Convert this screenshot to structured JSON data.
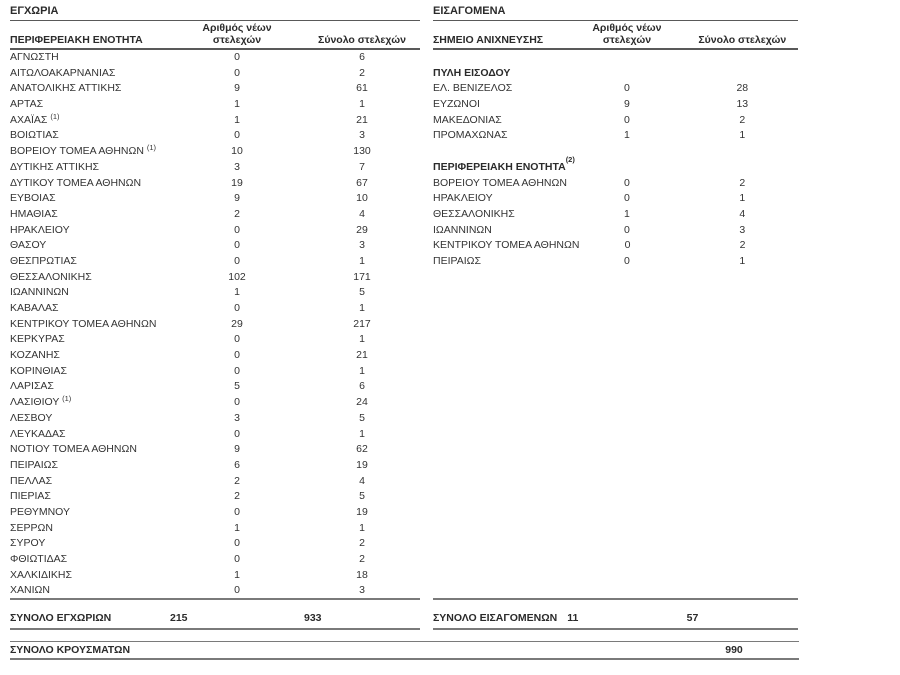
{
  "colors": {
    "text": "#333333",
    "bold_text": "#2b2b2b",
    "rule_thin": "#595959",
    "rule_thick": "#7a7a7a",
    "background": "#ffffff"
  },
  "domestic": {
    "title": "ΕΓΧΩΡΙΑ",
    "col1_header": "ΠΕΡΙΦΕΡΕΙΑΚΗ ΕΝΟΤΗΤΑ",
    "col2_header_line1": "Αριθμός νέων",
    "col2_header_line2": "στελεχών",
    "col3_header": "Σύνολο στελεχών",
    "rows": [
      {
        "name": "ΑΓΝΩΣΤΗ",
        "sup": "",
        "new": "0",
        "total": "6"
      },
      {
        "name": "ΑΙΤΩΛΟΑΚΑΡΝΑΝΙΑΣ",
        "sup": "",
        "new": "0",
        "total": "2"
      },
      {
        "name": "ΑΝΑΤΟΛΙΚΗΣ ΑΤΤΙΚΗΣ",
        "sup": "",
        "new": "9",
        "total": "61"
      },
      {
        "name": "ΑΡΤΑΣ",
        "sup": "",
        "new": "1",
        "total": "1"
      },
      {
        "name": "ΑΧΑΪΑΣ",
        "sup": "(1)",
        "new": "1",
        "total": "21"
      },
      {
        "name": "ΒΟΙΩΤΙΑΣ",
        "sup": "",
        "new": "0",
        "total": "3"
      },
      {
        "name": "ΒΟΡΕΙΟΥ ΤΟΜΕΑ ΑΘΗΝΩΝ",
        "sup": "(1)",
        "new": "10",
        "total": "130"
      },
      {
        "name": "ΔΥΤΙΚΗΣ ΑΤΤΙΚΗΣ",
        "sup": "",
        "new": "3",
        "total": "7"
      },
      {
        "name": "ΔΥΤΙΚΟΥ ΤΟΜΕΑ ΑΘΗΝΩΝ",
        "sup": "",
        "new": "19",
        "total": "67"
      },
      {
        "name": "ΕΥΒΟΙΑΣ",
        "sup": "",
        "new": "9",
        "total": "10"
      },
      {
        "name": "ΗΜΑΘΙΑΣ",
        "sup": "",
        "new": "2",
        "total": "4"
      },
      {
        "name": "ΗΡΑΚΛΕΙΟΥ",
        "sup": "",
        "new": "0",
        "total": "29"
      },
      {
        "name": "ΘΑΣΟΥ",
        "sup": "",
        "new": "0",
        "total": "3"
      },
      {
        "name": "ΘΕΣΠΡΩΤΙΑΣ",
        "sup": "",
        "new": "0",
        "total": "1"
      },
      {
        "name": "ΘΕΣΣΑΛΟΝΙΚΗΣ",
        "sup": "",
        "new": "102",
        "total": "171"
      },
      {
        "name": "ΙΩΑΝΝΙΝΩΝ",
        "sup": "",
        "new": "1",
        "total": "5"
      },
      {
        "name": "ΚΑΒΑΛΑΣ",
        "sup": "",
        "new": "0",
        "total": "1"
      },
      {
        "name": "ΚΕΝΤΡΙΚΟΥ ΤΟΜΕΑ ΑΘΗΝΩΝ",
        "sup": "",
        "new": "29",
        "total": "217"
      },
      {
        "name": "ΚΕΡΚΥΡΑΣ",
        "sup": "",
        "new": "0",
        "total": "1"
      },
      {
        "name": "ΚΟΖΑΝΗΣ",
        "sup": "",
        "new": "0",
        "total": "21"
      },
      {
        "name": "ΚΟΡΙΝΘΙΑΣ",
        "sup": "",
        "new": "0",
        "total": "1"
      },
      {
        "name": "ΛΑΡΙΣΑΣ",
        "sup": "",
        "new": "5",
        "total": "6"
      },
      {
        "name": "ΛΑΣΙΘΙΟΥ",
        "sup": "(1)",
        "new": "0",
        "total": "24"
      },
      {
        "name": "ΛΕΣΒΟΥ",
        "sup": "",
        "new": "3",
        "total": "5"
      },
      {
        "name": "ΛΕΥΚΑΔΑΣ",
        "sup": "",
        "new": "0",
        "total": "1"
      },
      {
        "name": "ΝΟΤΙΟΥ ΤΟΜΕΑ ΑΘΗΝΩΝ",
        "sup": "",
        "new": "9",
        "total": "62"
      },
      {
        "name": "ΠΕΙΡΑΙΩΣ",
        "sup": "",
        "new": "6",
        "total": "19"
      },
      {
        "name": "ΠΕΛΛΑΣ",
        "sup": "",
        "new": "2",
        "total": "4"
      },
      {
        "name": "ΠΙΕΡΙΑΣ",
        "sup": "",
        "new": "2",
        "total": "5"
      },
      {
        "name": "ΡΕΘΥΜΝΟΥ",
        "sup": "",
        "new": "0",
        "total": "19"
      },
      {
        "name": "ΣΕΡΡΩΝ",
        "sup": "",
        "new": "1",
        "total": "1"
      },
      {
        "name": "ΣΥΡΟΥ",
        "sup": "",
        "new": "0",
        "total": "2"
      },
      {
        "name": "ΦΘΙΩΤΙΔΑΣ",
        "sup": "",
        "new": "0",
        "total": "2"
      },
      {
        "name": "ΧΑΛΚΙΔΙΚΗΣ",
        "sup": "",
        "new": "1",
        "total": "18"
      },
      {
        "name": "ΧΑΝΙΩΝ",
        "sup": "",
        "new": "0",
        "total": "3"
      }
    ],
    "total_label": "ΣΥΝΟΛΟ ΕΓΧΩΡΙΩΝ",
    "total_new": "215",
    "total_sum": "933"
  },
  "imported": {
    "title": "ΕΙΣΑΓΟΜΕΝΑ",
    "col1_header": "ΣΗΜΕΙΟ ΑΝΙΧΝΕΥΣΗΣ",
    "col2_header_line1": "Αριθμός νέων",
    "col2_header_line2": "στελεχών",
    "col3_header": "Σύνολο στελεχών",
    "sections": [
      {
        "header": "ΠΥΛΗ ΕΙΣΟΔΟΥ",
        "sup": "",
        "rows": [
          {
            "name": "ΕΛ. ΒΕΝΙΖΕΛΟΣ",
            "sup": "",
            "new": "0",
            "total": "28"
          },
          {
            "name": "ΕΥΖΩΝΟΙ",
            "sup": "",
            "new": "9",
            "total": "13"
          },
          {
            "name": "ΜΑΚΕΔΟΝΙΑΣ",
            "sup": "",
            "new": "0",
            "total": "2"
          },
          {
            "name": "ΠΡΟΜΑΧΩΝΑΣ",
            "sup": "",
            "new": "1",
            "total": "1"
          }
        ]
      },
      {
        "header": "ΠΕΡΙΦΕΡΕΙΑΚΗ ΕΝΟΤΗΤΑ",
        "sup": "(2)",
        "rows": [
          {
            "name": "ΒΟΡΕΙΟΥ ΤΟΜΕΑ ΑΘΗΝΩΝ",
            "sup": "",
            "new": "0",
            "total": "2"
          },
          {
            "name": "ΗΡΑΚΛΕΙΟΥ",
            "sup": "",
            "new": "0",
            "total": "1"
          },
          {
            "name": "ΘΕΣΣΑΛΟΝΙΚΗΣ",
            "sup": "",
            "new": "1",
            "total": "4"
          },
          {
            "name": "ΙΩΑΝΝΙΝΩΝ",
            "sup": "",
            "new": "0",
            "total": "3"
          },
          {
            "name": "ΚΕΝΤΡΙΚΟΥ ΤΟΜΕΑ ΑΘΗΝΩΝ",
            "sup": "",
            "new": "0",
            "total": "2"
          },
          {
            "name": "ΠΕΙΡΑΙΩΣ",
            "sup": "",
            "new": "0",
            "total": "1"
          }
        ]
      }
    ],
    "total_label": "ΣΥΝΟΛΟ ΕΙΣΑΓΟΜΕΝΩΝ",
    "total_new": "11",
    "total_sum": "57"
  },
  "grand_total": {
    "label": "ΣΥΝΟΛΟ ΚΡΟΥΣΜΑΤΩΝ",
    "value": "990"
  }
}
